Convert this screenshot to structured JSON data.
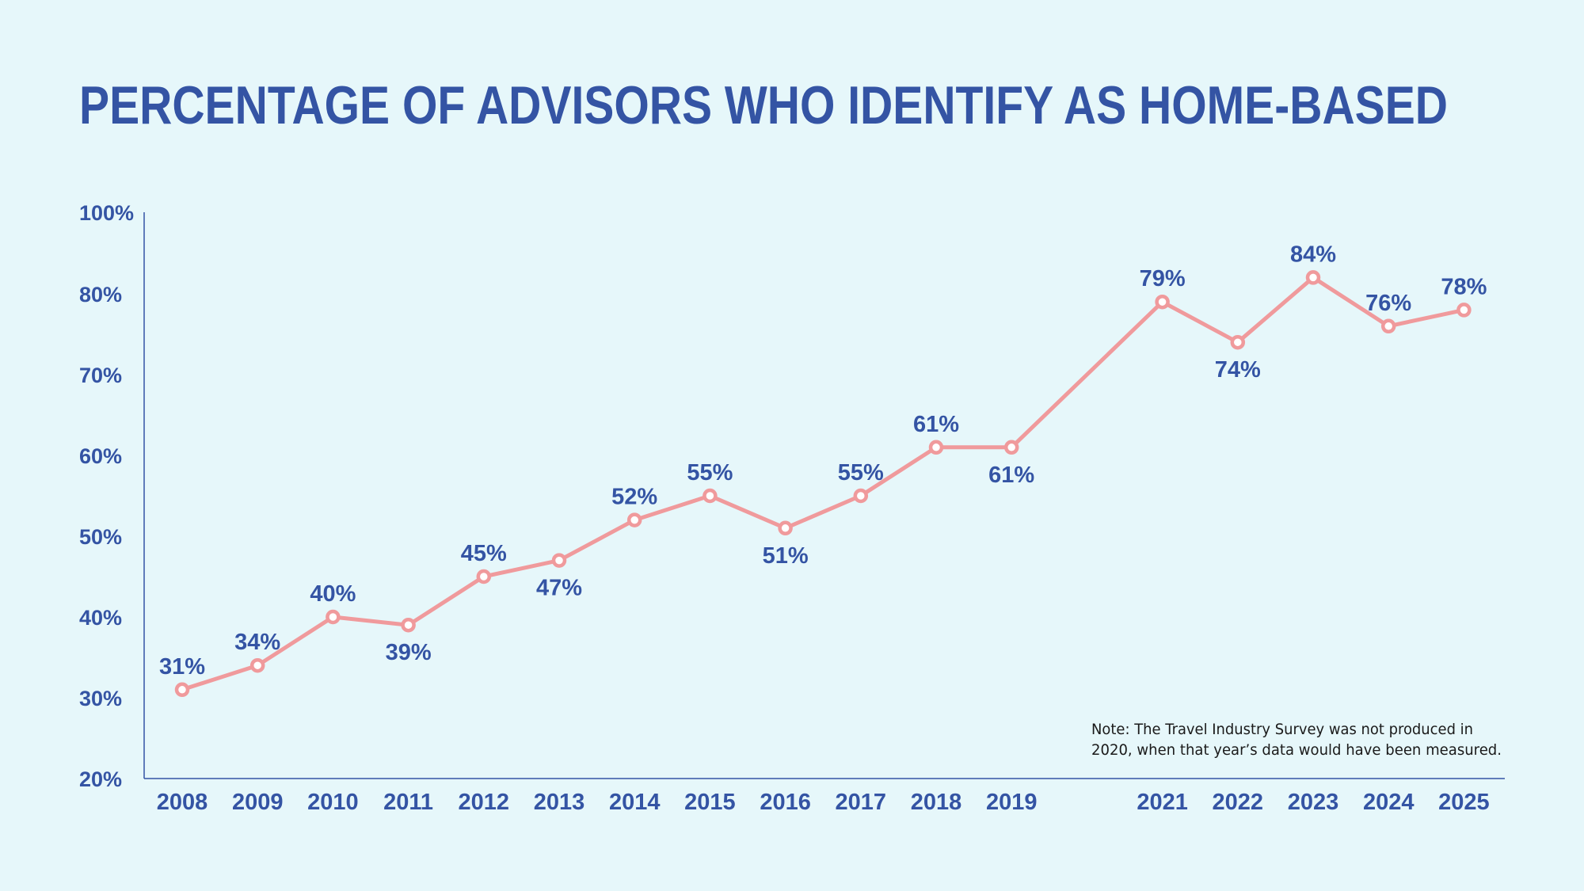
{
  "chart_data": {
    "type": "line",
    "title": "PERCENTAGE OF ADVISORS WHO IDENTIFY AS HOME-BASED",
    "xlabel": "",
    "ylabel": "",
    "ylim": [
      20,
      100
    ],
    "y_ticks": [
      "20%",
      "30%",
      "40%",
      "50%",
      "60%",
      "70%",
      "80%",
      "100%"
    ],
    "y_tick_values": [
      20,
      30,
      40,
      50,
      60,
      70,
      80,
      100
    ],
    "x": [
      2008,
      2009,
      2010,
      2011,
      2012,
      2013,
      2014,
      2015,
      2016,
      2017,
      2018,
      2019,
      2021,
      2022,
      2023,
      2024,
      2025
    ],
    "x_labels": [
      "2008",
      "2009",
      "2010",
      "2011",
      "2012",
      "2013",
      "2014",
      "2015",
      "2016",
      "2017",
      "2018",
      "2019",
      "2021",
      "2022",
      "2023",
      "2024",
      "2025"
    ],
    "series": [
      {
        "values": [
          31,
          34,
          40,
          39,
          45,
          47,
          52,
          55,
          51,
          55,
          61,
          61,
          79,
          74,
          84,
          76,
          78
        ],
        "labels": [
          "31%",
          "34%",
          "40%",
          "39%",
          "45%",
          "47%",
          "52%",
          "55%",
          "51%",
          "55%",
          "61%",
          "61%",
          "79%",
          "74%",
          "84%",
          "76%",
          "78%"
        ],
        "label_positions": [
          "above",
          "above",
          "above",
          "below",
          "above",
          "below",
          "above",
          "above",
          "below",
          "above",
          "above",
          "below",
          "above",
          "below",
          "above",
          "above",
          "above"
        ]
      }
    ],
    "grid": false,
    "note": [
      "Note: The Travel Industry Survey was not produced in",
      "2020, when that year’s data would have been measured."
    ],
    "colors": {
      "background": "#e6f7fa",
      "text": "#3454a4",
      "line": "#f09a9c",
      "axis": "#3454a4",
      "note": "#1a1a1a"
    }
  }
}
